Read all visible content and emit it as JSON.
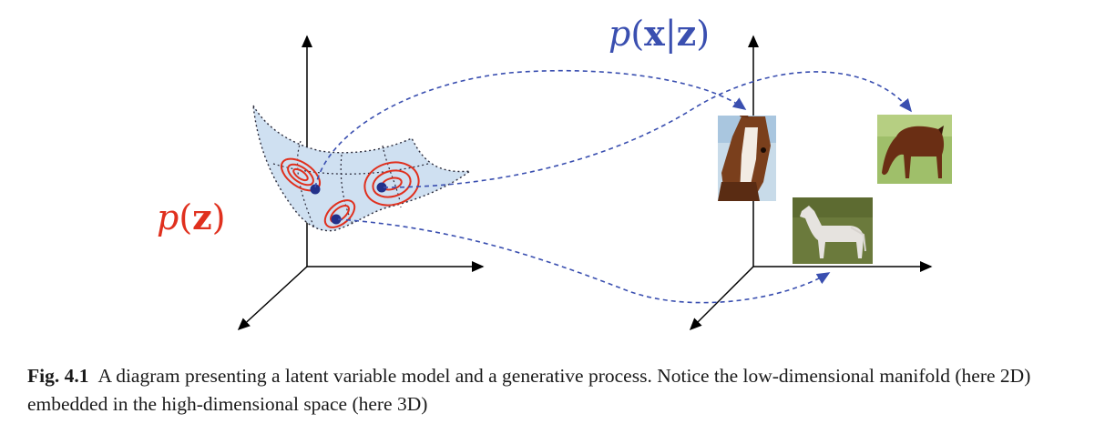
{
  "figure": {
    "latent_label_func": "p",
    "latent_label_var": "z",
    "likelihood_label_func": "p",
    "likelihood_label_x": "x",
    "likelihood_label_z": "z",
    "images": [
      {
        "name": "brown-horse-head-image",
        "depicts": "brown horse head close-up"
      },
      {
        "name": "grazing-horse-image",
        "depicts": "brown horse grazing on grass"
      },
      {
        "name": "white-horse-image",
        "depicts": "white horse standing on grass"
      }
    ],
    "colors": {
      "latent": "#e0301e",
      "likelihood": "#3a4fb0",
      "manifold_fill": "#cfe0f1",
      "axes": "#000000"
    }
  },
  "caption": {
    "label": "Fig. 4.1",
    "text": "A diagram presenting a latent variable model and a generative process. Notice the low-dimensional manifold (here 2D) embedded in the high-dimensional space (here 3D)"
  }
}
